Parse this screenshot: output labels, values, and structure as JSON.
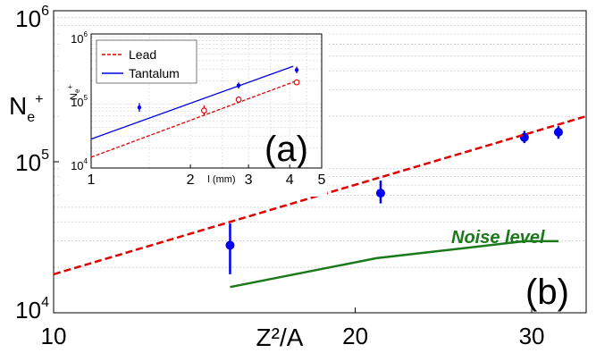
{
  "chart_data": [
    {
      "panel": "main",
      "type": "scatter",
      "panel_label": "(b)",
      "xlabel": "Z²/A",
      "ylabel": "N_e+",
      "xscale": "log",
      "yscale": "log",
      "xlim": [
        10,
        34
      ],
      "ylim": [
        10000,
        1000000
      ],
      "x_ticks": [
        "10",
        "20",
        "30"
      ],
      "y_ticks": [
        {
          "base": "10",
          "exp": "4"
        },
        {
          "base": "10",
          "exp": "5"
        },
        {
          "base": "10",
          "exp": "6"
        }
      ],
      "grid": true,
      "series": [
        {
          "kind": "points",
          "color": "#0000ee",
          "points": [
            {
              "x": 15.0,
              "y": 28000,
              "lo": 18000,
              "hi": 39000
            },
            {
              "x": 21.2,
              "y": 62000,
              "lo": 53000,
              "hi": 75000
            },
            {
              "x": 29.5,
              "y": 145000,
              "lo": 133000,
              "hi": 160000
            },
            {
              "x": 31.9,
              "y": 157000,
              "lo": 142000,
              "hi": 172000
            }
          ]
        },
        {
          "kind": "line",
          "dashed": true,
          "color": "#e00000",
          "x": [
            10,
            34
          ],
          "y": [
            18000,
            200000
          ]
        },
        {
          "name": "Noise level",
          "kind": "line",
          "color": "#1a7a1a",
          "label": "Noise level",
          "x": [
            15.0,
            21.0,
            29.5,
            31.9
          ],
          "y": [
            14800,
            23000,
            29800,
            29800
          ]
        }
      ]
    },
    {
      "panel": "inset",
      "type": "scatter",
      "panel_label": "(a)",
      "xlabel": "l (mm)",
      "ylabel": "N_e+",
      "xscale": "log",
      "yscale": "log",
      "xlim": [
        1,
        5
      ],
      "ylim": [
        10000,
        1000000
      ],
      "x_ticks": [
        "1",
        "2",
        "3",
        "4",
        "5"
      ],
      "y_ticks": [
        {
          "base": "10",
          "exp": "4"
        },
        {
          "base": "10",
          "exp": "5"
        },
        {
          "base": "10",
          "exp": "6"
        }
      ],
      "legend_position": "top-left",
      "series": [
        {
          "name": "Lead",
          "kind": "line",
          "dashed": true,
          "color": "#e00000",
          "x": [
            1,
            4.2
          ],
          "y": [
            14500,
            200000
          ],
          "points": [
            {
              "x": 2.2,
              "y": 72000,
              "lo": 60000,
              "hi": 86000
            },
            {
              "x": 2.8,
              "y": 105000,
              "lo": 94000,
              "hi": 117000
            },
            {
              "x": 4.2,
              "y": 190000,
              "lo": 175000,
              "hi": 207000
            }
          ]
        },
        {
          "name": "Tantalum",
          "kind": "line",
          "dashed": false,
          "color": "#0000ee",
          "x": [
            1,
            4.1
          ],
          "y": [
            27000,
            330000
          ],
          "points": [
            {
              "x": 1.4,
              "y": 80000,
              "lo": 69000,
              "hi": 93000
            },
            {
              "x": 2.8,
              "y": 170000,
              "lo": 153000,
              "hi": 189000
            },
            {
              "x": 4.2,
              "y": 290000,
              "lo": 259000,
              "hi": 326000
            }
          ]
        }
      ]
    }
  ]
}
